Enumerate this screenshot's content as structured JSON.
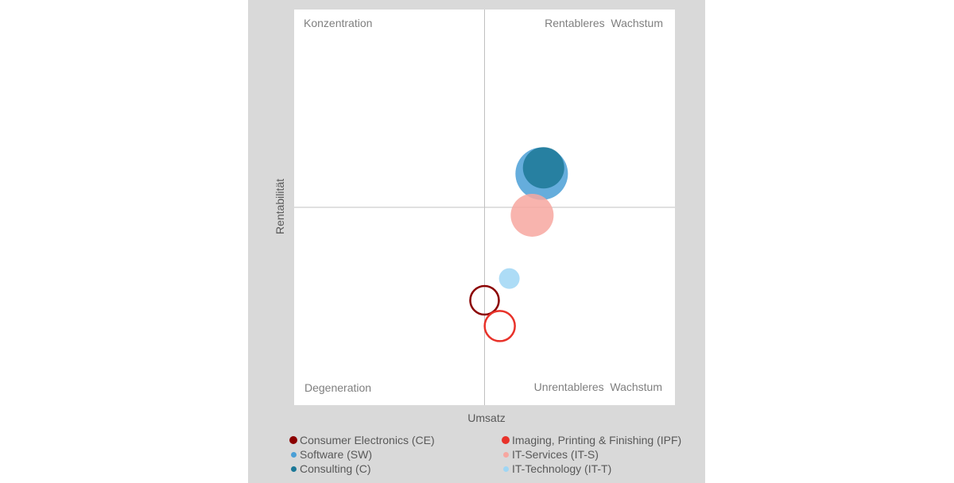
{
  "chart_data": {
    "type": "bubble",
    "xlabel": "Umsatz",
    "ylabel": "Rentabilität",
    "xlim": [
      -1,
      1
    ],
    "ylim": [
      -1,
      1
    ],
    "quadrants": {
      "top_left": "Konzentration",
      "top_right": "Rentableres  Wachstum",
      "bottom_left": "Degeneration",
      "bottom_right": "Unrentableres  Wachstum"
    },
    "series": [
      {
        "name": "Consumer Electronics (CE)",
        "abbr": "CE",
        "x": 0.0,
        "y": -0.47,
        "size": 18,
        "color": "#8b0000",
        "fill": false
      },
      {
        "name": "Imaging, Printing & Finishing (IPF)",
        "abbr": "IPF",
        "x": 0.08,
        "y": -0.6,
        "size": 19,
        "color": "#e8322a",
        "fill": false
      },
      {
        "name": "Software (SW)",
        "abbr": "SW",
        "x": 0.3,
        "y": 0.17,
        "size": 33,
        "color": "#4a9fd6",
        "fill": true
      },
      {
        "name": "IT-Services (IT-S)",
        "abbr": "IT-S",
        "x": 0.25,
        "y": -0.04,
        "size": 27,
        "color": "#f7a7a0",
        "fill": true
      },
      {
        "name": "Consulting (C)",
        "abbr": "C",
        "x": 0.31,
        "y": 0.2,
        "size": 26,
        "color": "#1c7897",
        "fill": true
      },
      {
        "name": "IT-Technology (IT-T)",
        "abbr": "IT-T",
        "x": 0.13,
        "y": -0.36,
        "size": 13,
        "color": "#9fd6f4",
        "fill": true
      }
    ],
    "legend_placement": "bottom",
    "grid": false
  }
}
